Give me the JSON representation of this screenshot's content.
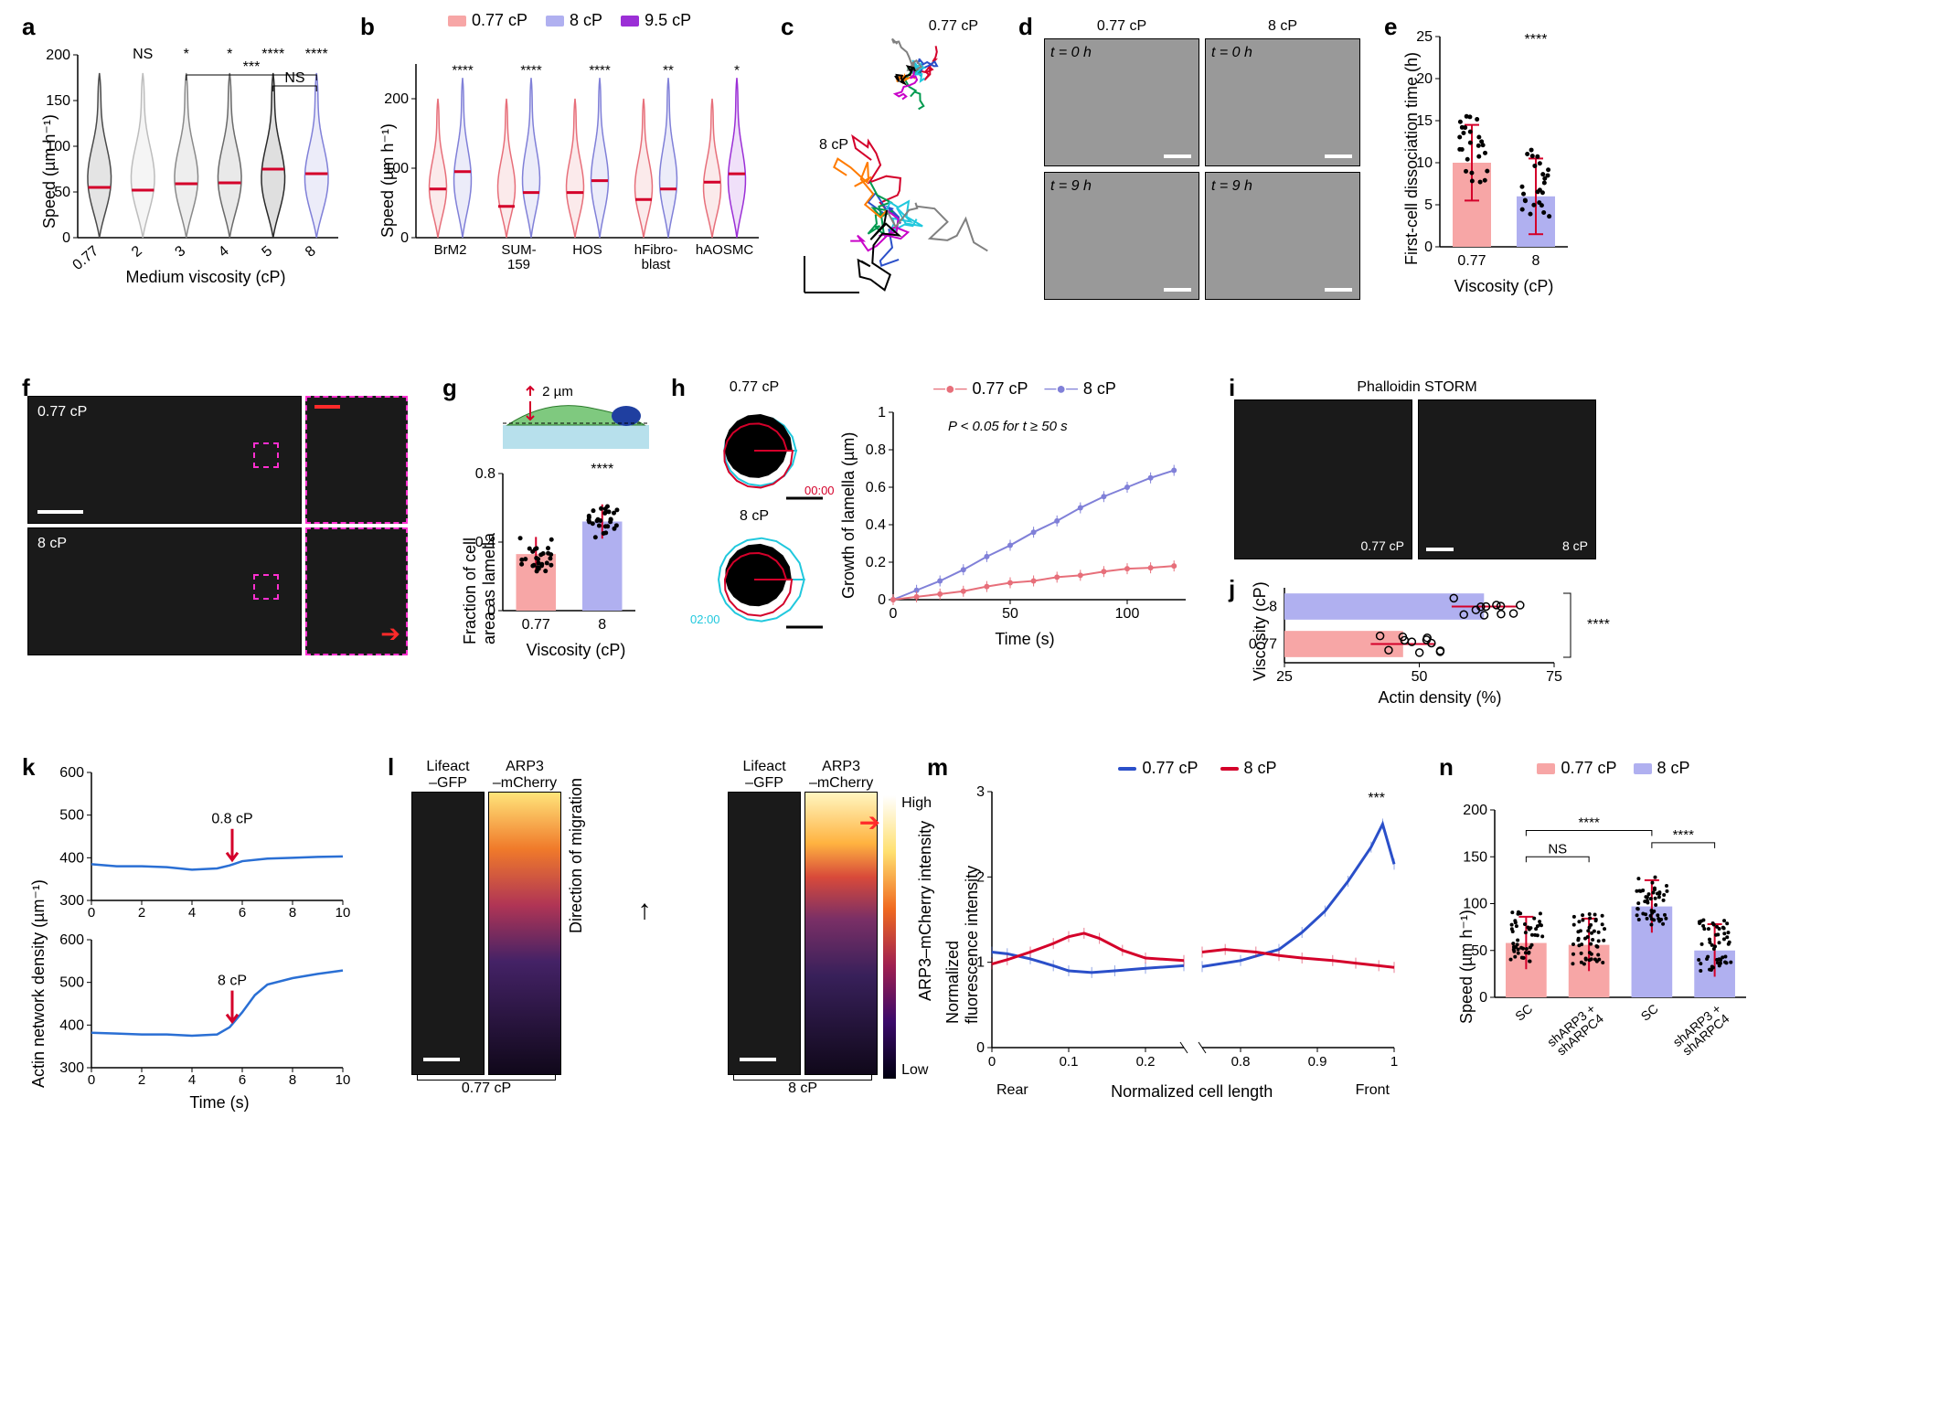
{
  "colors": {
    "pink": "#f7a6a6",
    "pink_line": "#e76f7a",
    "lavender": "#b0b0f0",
    "lavender_line": "#8080d8",
    "purple": "#9b2fd6",
    "red": "#d4002a",
    "blue": "#2a4fc9",
    "grey_series": [
      "#4a4a4a",
      "#bdbdbd",
      "#8a8a8a",
      "#6a6a6a",
      "#2a2a2a",
      "#8080d8"
    ]
  },
  "a": {
    "label": "a",
    "ylabel": "Speed (µm h⁻¹)",
    "xlabel": "Medium viscosity (cP)",
    "ylim": [
      0,
      200
    ],
    "yticks": [
      0,
      50,
      100,
      150,
      200
    ],
    "xticks": [
      "0.77",
      "2",
      "3",
      "4",
      "5",
      "8"
    ],
    "medians": [
      55,
      52,
      59,
      60,
      75,
      70
    ],
    "sig_top": [
      "",
      "NS",
      "*",
      "*",
      "****",
      "****"
    ],
    "brackets": [
      {
        "from": 2,
        "to": 5,
        "label": "***",
        "y": 218
      },
      {
        "from": 4,
        "to": 5,
        "label": "NS",
        "y": 206
      }
    ],
    "violin_colors": [
      "#4a4a4a",
      "#bdbdbd",
      "#8a8a8a",
      "#6a6a6a",
      "#2a2a2a",
      "#8080d8"
    ]
  },
  "b": {
    "label": "b",
    "ylabel": "Speed (µm h⁻¹)",
    "ylim": [
      0,
      250
    ],
    "yticks": [
      0,
      100,
      200
    ],
    "groups": [
      "BrM2",
      "SUM-\n159",
      "HOS",
      "hFibro-\nblast",
      "hAOSMC"
    ],
    "legend": [
      {
        "label": "0.77 cP",
        "color": "#f7a6a6"
      },
      {
        "label": "8 cP",
        "color": "#b0b0f0"
      },
      {
        "label": "9.5 cP",
        "color": "#9b2fd6"
      }
    ],
    "sig": [
      "****",
      "****",
      "****",
      "**",
      "*"
    ],
    "medians": [
      [
        70,
        95
      ],
      [
        45,
        65
      ],
      [
        65,
        82
      ],
      [
        55,
        70
      ],
      [
        80,
        92
      ]
    ]
  },
  "c": {
    "label": "c",
    "top_label": "0.77 cP",
    "bottom_label": "8 cP"
  },
  "d": {
    "label": "d",
    "cols": [
      "0.77 cP",
      "8 cP"
    ],
    "rows": [
      "t = 0 h",
      "t = 9 h"
    ]
  },
  "e": {
    "label": "e",
    "ylabel": "First-cell dissociation time (h)",
    "xlabel": "Viscosity (cP)",
    "ylim": [
      0,
      25
    ],
    "yticks": [
      0,
      5,
      10,
      15,
      20,
      25
    ],
    "xticks": [
      "0.77",
      "8"
    ],
    "means": [
      10,
      6
    ],
    "colors": [
      "#f7a6a6",
      "#b0b0f0"
    ],
    "sig": "****"
  },
  "f": {
    "label": "f",
    "labels": [
      "0.77 cP",
      "8 cP"
    ]
  },
  "g": {
    "label": "g",
    "ylabel": "Fraction of cell\narea as lamella",
    "xlabel": "Viscosity (cP)",
    "ylim": [
      0,
      0.8
    ],
    "yticks": [
      0,
      0.4,
      0.8
    ],
    "xticks": [
      "0.77",
      "8"
    ],
    "means": [
      0.33,
      0.52
    ],
    "colors": [
      "#f7a6a6",
      "#b0b0f0"
    ],
    "sig": "****",
    "schematic_note": "2 µm"
  },
  "h": {
    "label": "h",
    "leftlabels": [
      "0.77 cP",
      "8 cP"
    ],
    "ts_colors": {
      "red": "#d4002a",
      "cyan": "#20c8dd"
    },
    "ts_labels": {
      "red": "00:00",
      "cyan": "02:00"
    },
    "ylabel": "Growth of lamella (µm)",
    "xlabel": "Time (s)",
    "xlim": [
      0,
      125
    ],
    "xticks": [
      0,
      50,
      100
    ],
    "ylim": [
      0,
      1.0
    ],
    "yticks": [
      0,
      0.2,
      0.4,
      0.6,
      0.8,
      1.0
    ],
    "note": "P < 0.05 for t ≥ 50 s",
    "legend": [
      {
        "label": "0.77 cP",
        "color": "#e76f7a"
      },
      {
        "label": "8 cP",
        "color": "#8080d8"
      }
    ],
    "series": {
      "low": [
        [
          0,
          0.0
        ],
        [
          10,
          0.015
        ],
        [
          20,
          0.03
        ],
        [
          30,
          0.045
        ],
        [
          40,
          0.07
        ],
        [
          50,
          0.09
        ],
        [
          60,
          0.1
        ],
        [
          70,
          0.12
        ],
        [
          80,
          0.13
        ],
        [
          90,
          0.15
        ],
        [
          100,
          0.165
        ],
        [
          110,
          0.17
        ],
        [
          120,
          0.18
        ]
      ],
      "high": [
        [
          0,
          0.0
        ],
        [
          10,
          0.05
        ],
        [
          20,
          0.1
        ],
        [
          30,
          0.16
        ],
        [
          40,
          0.23
        ],
        [
          50,
          0.29
        ],
        [
          60,
          0.36
        ],
        [
          70,
          0.42
        ],
        [
          80,
          0.49
        ],
        [
          90,
          0.55
        ],
        [
          100,
          0.6
        ],
        [
          110,
          0.65
        ],
        [
          120,
          0.69
        ]
      ]
    }
  },
  "i": {
    "label": "i",
    "title": "Phalloidin STORM",
    "labels": [
      "0.77 cP",
      "8 cP"
    ]
  },
  "j": {
    "label": "j",
    "xlabel": "Actin density (%)",
    "ylabel": "Viscosity (cP)",
    "xlim": [
      25,
      75
    ],
    "xticks": [
      25,
      50,
      75
    ],
    "cats": [
      "8",
      "0.77"
    ],
    "means": [
      62,
      47
    ],
    "colors": [
      "#b0b0f0",
      "#f7a6a6"
    ],
    "sig": "****"
  },
  "k": {
    "label": "k",
    "ylabel": "Actin network density (µm⁻¹)",
    "xlabel": "Time (s)",
    "xlim": [
      0,
      10
    ],
    "xticks": [
      0,
      2,
      4,
      6,
      8,
      10
    ],
    "top": {
      "ylim": [
        300,
        600
      ],
      "yticks": [
        300,
        400,
        500,
        600
      ],
      "arrow_label": "0.8 cP",
      "series": [
        [
          0,
          385
        ],
        [
          1,
          380
        ],
        [
          2,
          380
        ],
        [
          3,
          378
        ],
        [
          4,
          372
        ],
        [
          5,
          375
        ],
        [
          5.5,
          382
        ],
        [
          6,
          392
        ],
        [
          7,
          398
        ],
        [
          8,
          400
        ],
        [
          9,
          402
        ],
        [
          10,
          403
        ]
      ]
    },
    "bottom": {
      "ylim": [
        300,
        600
      ],
      "yticks": [
        300,
        400,
        500,
        600
      ],
      "arrow_label": "8 cP",
      "series": [
        [
          0,
          382
        ],
        [
          1,
          380
        ],
        [
          2,
          378
        ],
        [
          3,
          378
        ],
        [
          4,
          375
        ],
        [
          5,
          378
        ],
        [
          5.5,
          395
        ],
        [
          6,
          430
        ],
        [
          6.5,
          470
        ],
        [
          7,
          495
        ],
        [
          8,
          510
        ],
        [
          9,
          520
        ],
        [
          10,
          528
        ]
      ]
    }
  },
  "l": {
    "label": "l",
    "col_labels": [
      "Lifeact\n–GFP",
      "ARP3\n–mCherry",
      "Lifeact\n–GFP",
      "ARP3\n–mCherry"
    ],
    "group_labels": [
      "0.77 cP",
      "8 cP"
    ],
    "side_label": "Direction of migration",
    "cb_top": "High",
    "cb_bottom": "Low",
    "cb_label": "ARP3–mCherry intensity"
  },
  "m": {
    "label": "m",
    "ylabel": "Normalized\nfluorescence intensity",
    "xlabel": "Normalized cell length",
    "ylim": [
      0,
      3
    ],
    "yticks": [
      0,
      1,
      2,
      3
    ],
    "xticks_left": [
      0,
      0.1,
      0.2
    ],
    "xticks_right": [
      0.8,
      0.9,
      1.0
    ],
    "end_labels": [
      "Rear",
      "Front"
    ],
    "legend": [
      {
        "label": "0.77 cP",
        "color": "#2a4fc9"
      },
      {
        "label": "8 cP",
        "color": "#d4002a"
      }
    ],
    "sig": "***",
    "left": {
      "blue": [
        [
          0.0,
          1.12
        ],
        [
          0.02,
          1.1
        ],
        [
          0.05,
          1.04
        ],
        [
          0.08,
          0.96
        ],
        [
          0.1,
          0.9
        ],
        [
          0.13,
          0.88
        ],
        [
          0.16,
          0.9
        ],
        [
          0.2,
          0.93
        ],
        [
          0.25,
          0.96
        ]
      ],
      "red": [
        [
          0.0,
          0.98
        ],
        [
          0.02,
          1.03
        ],
        [
          0.05,
          1.12
        ],
        [
          0.08,
          1.22
        ],
        [
          0.1,
          1.3
        ],
        [
          0.12,
          1.34
        ],
        [
          0.14,
          1.28
        ],
        [
          0.17,
          1.14
        ],
        [
          0.2,
          1.05
        ],
        [
          0.25,
          1.02
        ]
      ]
    },
    "right": {
      "blue": [
        [
          0.75,
          0.95
        ],
        [
          0.8,
          1.02
        ],
        [
          0.85,
          1.15
        ],
        [
          0.88,
          1.35
        ],
        [
          0.91,
          1.6
        ],
        [
          0.94,
          1.95
        ],
        [
          0.97,
          2.35
        ],
        [
          0.985,
          2.62
        ],
        [
          1.0,
          2.15
        ]
      ],
      "red": [
        [
          0.75,
          1.12
        ],
        [
          0.78,
          1.15
        ],
        [
          0.82,
          1.12
        ],
        [
          0.85,
          1.08
        ],
        [
          0.88,
          1.05
        ],
        [
          0.92,
          1.02
        ],
        [
          0.95,
          0.99
        ],
        [
          0.98,
          0.96
        ],
        [
          1.0,
          0.94
        ]
      ]
    }
  },
  "n": {
    "label": "n",
    "ylabel": "Speed (µm h⁻¹)",
    "ylim": [
      0,
      200
    ],
    "yticks": [
      0,
      50,
      100,
      150,
      200
    ],
    "legend": [
      {
        "label": "0.77 cP",
        "color": "#f7a6a6"
      },
      {
        "label": "8 cP",
        "color": "#b0b0f0"
      }
    ],
    "groups": [
      "SC",
      "shARP3 +\nshARPC4",
      "SC",
      "shARP3 +\nshARPC4"
    ],
    "colors": [
      "#f7a6a6",
      "#f7a6a6",
      "#b0b0f0",
      "#b0b0f0"
    ],
    "means": [
      58,
      56,
      97,
      50
    ],
    "sig_pairs": [
      {
        "from": 0,
        "to": 1,
        "label": "NS",
        "y": 150
      },
      {
        "from": 0,
        "to": 2,
        "label": "****",
        "y": 178
      },
      {
        "from": 2,
        "to": 3,
        "label": "****",
        "y": 165
      }
    ]
  }
}
